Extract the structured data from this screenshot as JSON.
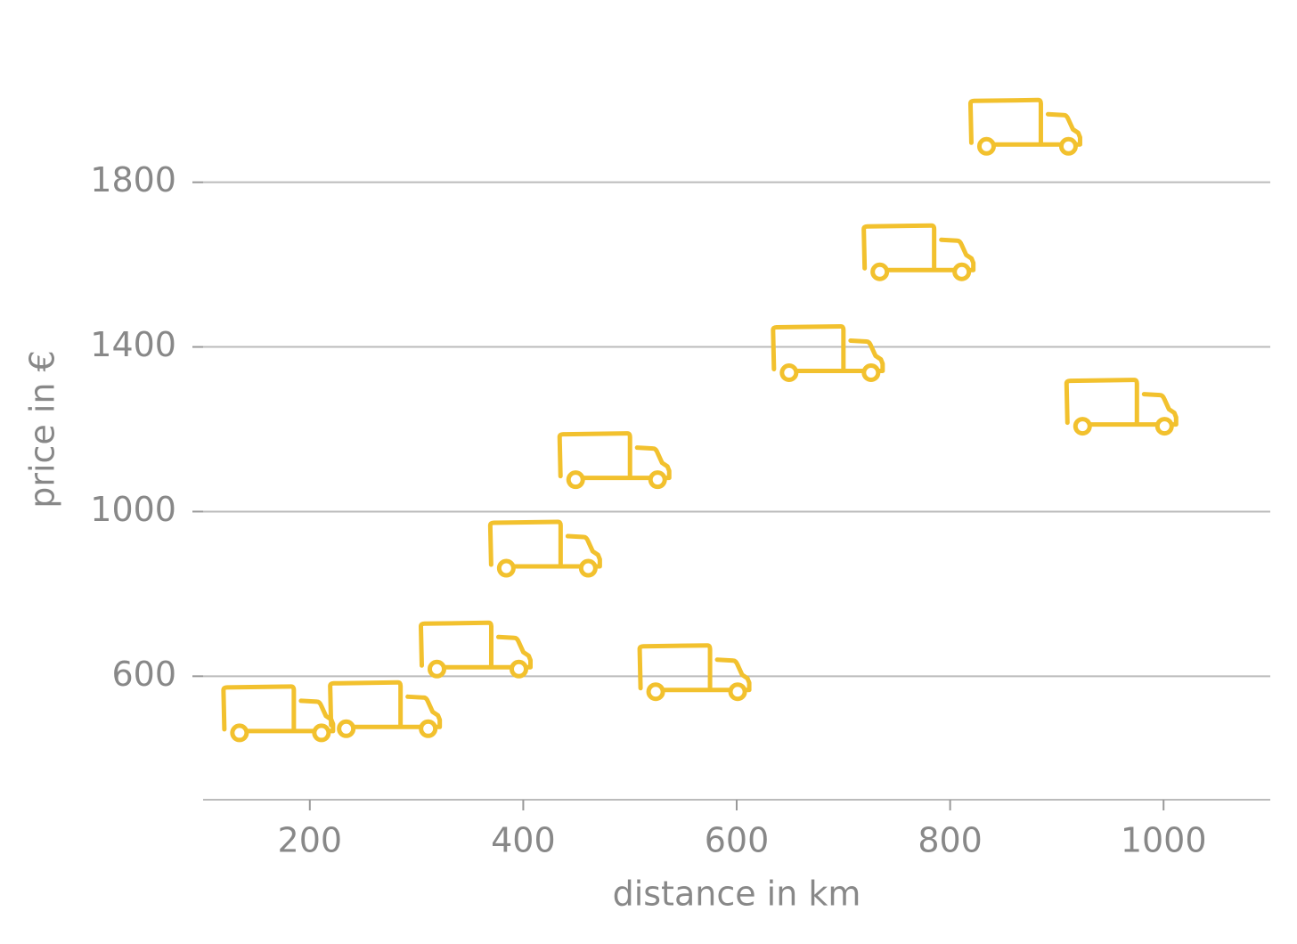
{
  "chart_data": {
    "type": "scatter",
    "x_label": "distance in km",
    "y_label": "price in €",
    "x": [
      170,
      270,
      355,
      420,
      485,
      560,
      685,
      770,
      870,
      960
    ],
    "values": [
      510,
      520,
      665,
      910,
      1125,
      610,
      1385,
      1630,
      1935,
      1255
    ],
    "color": "#f2c12e",
    "xlim": [
      100,
      1100
    ],
    "xticks": [
      200,
      400,
      600,
      800,
      1000
    ],
    "ylim": [
      300,
      2100
    ],
    "yticks": [
      600,
      1000,
      1400,
      1800
    ],
    "grid": true
  }
}
